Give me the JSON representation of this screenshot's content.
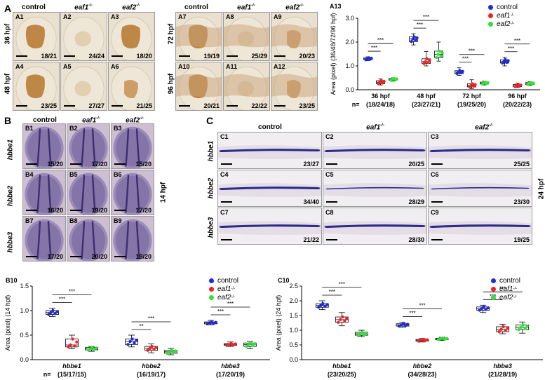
{
  "colors": {
    "control": "#1f2bd6",
    "eaf1": "#e8262a",
    "eaf2": "#32e03a",
    "brown": "#b67a30",
    "purple": "#4a3f93"
  },
  "panelA": {
    "label": "A",
    "cols": [
      "control",
      "eaf1",
      "eaf2"
    ],
    "cols_sup": [
      "",
      "-/-",
      "-/-"
    ],
    "rows_left": [
      "36 hpf",
      "48 hpf"
    ],
    "rows_right": [
      "72 hpf",
      "96 hpf"
    ],
    "tiles": [
      {
        "id": "A1",
        "count": "18/21"
      },
      {
        "id": "A2",
        "count": "24/24"
      },
      {
        "id": "A3",
        "count": "18/20"
      },
      {
        "id": "A4",
        "count": "23/25"
      },
      {
        "id": "A5",
        "count": "27/27"
      },
      {
        "id": "A6",
        "count": "21/25"
      },
      {
        "id": "A7",
        "count": "19/19"
      },
      {
        "id": "A8",
        "count": "25/29"
      },
      {
        "id": "A9",
        "count": "20/23"
      },
      {
        "id": "A10",
        "count": "20/21"
      },
      {
        "id": "A11",
        "count": "22/22"
      },
      {
        "id": "A12",
        "count": "23/25"
      }
    ]
  },
  "panelB": {
    "label": "B",
    "cols": [
      "control",
      "eaf1",
      "eaf2"
    ],
    "cols_sup": [
      "",
      "-/-",
      "-/-"
    ],
    "rows": [
      "hbbe1",
      "hbbe2",
      "hbbe3"
    ],
    "stage": "14 hpf",
    "tiles": [
      {
        "id": "B1",
        "count": "15/20"
      },
      {
        "id": "B2",
        "count": "17/20"
      },
      {
        "id": "B3",
        "count": "15/20"
      },
      {
        "id": "B4",
        "count": "16/20"
      },
      {
        "id": "B5",
        "count": "19/20"
      },
      {
        "id": "B6",
        "count": "17/20"
      },
      {
        "id": "B7",
        "count": "17/20"
      },
      {
        "id": "B8",
        "count": "20/20"
      },
      {
        "id": "B9",
        "count": "19/20"
      }
    ]
  },
  "panelC": {
    "label": "C",
    "cols": [
      "control",
      "eaf1",
      "eaf2"
    ],
    "cols_sup": [
      "",
      "-/-",
      "-/-"
    ],
    "rows": [
      "hbbe1",
      "hbbe2",
      "hbbe3"
    ],
    "stage": "24 hpf",
    "tiles": [
      {
        "id": "C1",
        "count": "23/27"
      },
      {
        "id": "C2",
        "count": "20/25"
      },
      {
        "id": "C3",
        "count": "25/25"
      },
      {
        "id": "C4",
        "count": "34/40"
      },
      {
        "id": "C5",
        "count": "28/29"
      },
      {
        "id": "C6",
        "count": "23/30"
      },
      {
        "id": "C7",
        "count": "21/22"
      },
      {
        "id": "C8",
        "count": "28/30"
      },
      {
        "id": "C9",
        "count": "19/25"
      }
    ]
  },
  "legend": {
    "items": [
      "control",
      "eaf1",
      "eaf2"
    ],
    "sups": [
      "",
      "-/-",
      "-/-"
    ]
  },
  "chart_data": [
    {
      "id": "A13",
      "type": "box",
      "ylabel": "Area (pixel) (36/48/72/96 hpf)",
      "ylim": [
        0,
        3.0
      ],
      "yticks": [
        "0.0",
        "1.0",
        "2.0",
        "3.0"
      ],
      "categories": [
        "36 hpf",
        "48 hpf",
        "72 hpf",
        "96 hpf"
      ],
      "n_prefix": "n=",
      "n_labels": [
        "(18/24/18)",
        "(23/27/21)",
        "(19/25/20)",
        "(20/22/23)"
      ],
      "series": [
        {
          "key": "control",
          "boxes": [
            [
              1.22,
              1.26,
              1.3,
              1.34,
              1.38
            ],
            [
              1.88,
              2.02,
              2.13,
              2.22,
              2.35
            ],
            [
              0.6,
              0.68,
              0.74,
              0.8,
              0.92
            ],
            [
              1.0,
              1.12,
              1.18,
              1.26,
              1.36
            ]
          ]
        },
        {
          "key": "eaf1",
          "boxes": [
            [
              0.2,
              0.25,
              0.32,
              0.38,
              0.45
            ],
            [
              1.0,
              1.1,
              1.18,
              1.3,
              1.6
            ],
            [
              0.05,
              0.12,
              0.18,
              0.25,
              0.42
            ],
            [
              0.1,
              0.13,
              0.17,
              0.22,
              0.28
            ]
          ]
        },
        {
          "key": "eaf2",
          "boxes": [
            [
              0.36,
              0.4,
              0.44,
              0.47,
              0.5
            ],
            [
              1.2,
              1.35,
              1.48,
              1.62,
              2.0
            ],
            [
              0.2,
              0.24,
              0.28,
              0.32,
              0.36
            ],
            [
              0.18,
              0.22,
              0.26,
              0.3,
              0.34
            ]
          ]
        }
      ],
      "sig": [
        "***",
        "***",
        "***",
        "***",
        "***",
        "***",
        "***",
        "***",
        "***"
      ]
    },
    {
      "id": "B10",
      "type": "box",
      "ylabel": "Area (pixel) (14 hpf)",
      "ylim": [
        0,
        1.5
      ],
      "yticks": [
        "0.0",
        "0.5",
        "1.0",
        "1.5"
      ],
      "categories": [
        "hbbe1",
        "hbbe2",
        "hbbe3"
      ],
      "n_prefix": "n=",
      "n_labels": [
        "(15/17/15)",
        "(16/19/17)",
        "(17/20/19)"
      ],
      "series": [
        {
          "key": "control",
          "boxes": [
            [
              0.88,
              0.92,
              0.96,
              1.0,
              1.05
            ],
            [
              0.26,
              0.31,
              0.37,
              0.42,
              0.5
            ],
            [
              0.71,
              0.73,
              0.75,
              0.77,
              0.8
            ]
          ]
        },
        {
          "key": "eaf1",
          "boxes": [
            [
              0.22,
              0.26,
              0.3,
              0.42,
              0.5
            ],
            [
              0.14,
              0.19,
              0.23,
              0.27,
              0.32
            ],
            [
              0.27,
              0.29,
              0.31,
              0.33,
              0.36
            ]
          ]
        },
        {
          "key": "eaf2",
          "boxes": [
            [
              0.17,
              0.2,
              0.22,
              0.25,
              0.27
            ],
            [
              0.1,
              0.13,
              0.16,
              0.19,
              0.23
            ],
            [
              0.22,
              0.27,
              0.31,
              0.34,
              0.37
            ]
          ]
        }
      ],
      "sig": [
        "***",
        "***",
        "**",
        "***",
        "***",
        "***"
      ]
    },
    {
      "id": "C10",
      "type": "box",
      "ylabel": "Area (pixel) (24 hpf)",
      "ylim": [
        0,
        2.5
      ],
      "yticks": [
        "0.0",
        "0.5",
        "1.0",
        "1.5",
        "2.0",
        "2.5"
      ],
      "categories": [
        "hbbe1",
        "hbbe2",
        "hbbe3"
      ],
      "n_prefix": "",
      "n_labels": [
        "(23/20/25)",
        "(34/28/23)",
        "(21/28/19)"
      ],
      "series": [
        {
          "key": "control",
          "boxes": [
            [
              1.7,
              1.78,
              1.84,
              1.9,
              2.0
            ],
            [
              1.1,
              1.14,
              1.18,
              1.22,
              1.27
            ],
            [
              1.6,
              1.68,
              1.73,
              1.79,
              1.85
            ]
          ]
        },
        {
          "key": "eaf1",
          "boxes": [
            [
              1.15,
              1.27,
              1.36,
              1.45,
              1.6
            ],
            [
              0.6,
              0.63,
              0.66,
              0.69,
              0.72
            ],
            [
              0.88,
              0.95,
              1.03,
              1.12,
              1.2
            ]
          ]
        },
        {
          "key": "eaf2",
          "boxes": [
            [
              0.78,
              0.83,
              0.88,
              0.93,
              1.0
            ],
            [
              0.65,
              0.68,
              0.71,
              0.73,
              0.76
            ],
            [
              0.9,
              1.02,
              1.1,
              1.18,
              1.28
            ]
          ]
        }
      ],
      "sig": [
        "***",
        "***",
        "***",
        "***",
        "***",
        "***",
        "***",
        "***",
        "***"
      ]
    }
  ]
}
